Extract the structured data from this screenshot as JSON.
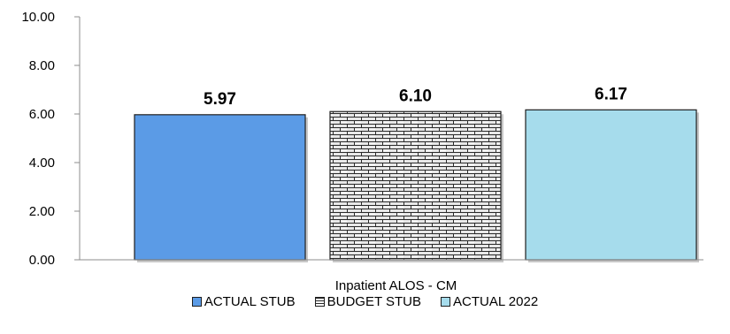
{
  "chart_data": {
    "type": "bar",
    "categories": [
      "Inpatient ALOS - CM"
    ],
    "series": [
      {
        "name": "ACTUAL STUB",
        "values": [
          5.97
        ],
        "color": "#5b9be6",
        "pattern": "solid"
      },
      {
        "name": "BUDGET STUB",
        "values": [
          6.1
        ],
        "color": "#d9d9d9",
        "pattern": "brick"
      },
      {
        "name": "ACTUAL 2022",
        "values": [
          6.17
        ],
        "color": "#a6dcec",
        "pattern": "solid"
      }
    ],
    "data_labels": [
      "5.97",
      "6.10",
      "6.17"
    ],
    "yticks": [
      "0.00",
      "2.00",
      "4.00",
      "6.00",
      "8.00",
      "10.00"
    ],
    "ylim": [
      0,
      10
    ],
    "title": "",
    "xlabel": "",
    "ylabel": "",
    "grid": false,
    "legend_position": "bottom"
  }
}
